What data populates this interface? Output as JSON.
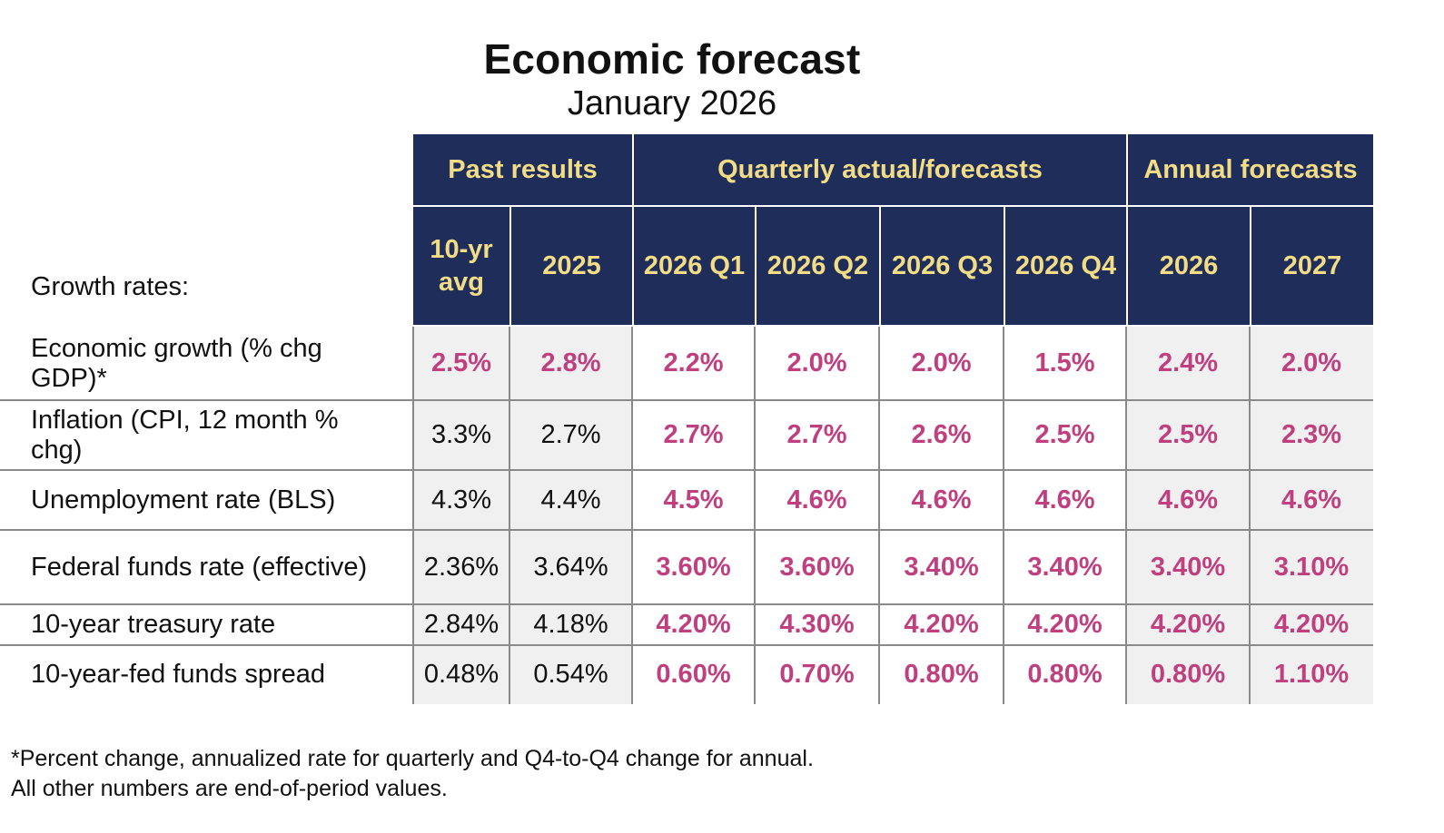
{
  "title": "Economic forecast",
  "subtitle": "January 2026",
  "header": {
    "groups": [
      "Past results",
      "Quarterly actual/forecasts",
      "Annual forecasts"
    ],
    "columns": [
      "10-yr avg",
      "2025",
      "2026 Q1",
      "2026 Q2",
      "2026 Q3",
      "2026 Q4",
      "2026",
      "2027"
    ]
  },
  "section_label": "Growth rates:",
  "rows": [
    {
      "label": "Economic growth (% chg GDP)*",
      "values": [
        "2.5%",
        "2.8%",
        "2.2%",
        "2.0%",
        "2.0%",
        "1.5%",
        "2.4%",
        "2.0%"
      ]
    },
    {
      "label": "Inflation (CPI, 12 month % chg)",
      "values": [
        "3.3%",
        "2.7%",
        "2.7%",
        "2.7%",
        "2.6%",
        "2.5%",
        "2.5%",
        "2.3%"
      ]
    },
    {
      "label": "Unemployment rate (BLS)",
      "values": [
        "4.3%",
        "4.4%",
        "4.5%",
        "4.6%",
        "4.6%",
        "4.6%",
        "4.6%",
        "4.6%"
      ]
    },
    {
      "label": "Federal funds rate (effective)",
      "values": [
        "2.36%",
        "3.64%",
        "3.60%",
        "3.60%",
        "3.40%",
        "3.40%",
        "3.40%",
        "3.10%"
      ]
    },
    {
      "label": "10-year treasury rate",
      "values": [
        "2.84%",
        "4.18%",
        "4.20%",
        "4.30%",
        "4.20%",
        "4.20%",
        "4.20%",
        "4.20%"
      ]
    },
    {
      "label": "10-year-fed funds spread",
      "values": [
        "0.48%",
        "0.54%",
        "0.60%",
        "0.70%",
        "0.80%",
        "0.80%",
        "0.80%",
        "1.10%"
      ]
    }
  ],
  "highlight_first_row_past": true,
  "colors": {
    "header_bg": "#1f2d5b",
    "header_text": "#f3dc86",
    "forecast_text": "#c0407f"
  },
  "footnotes": [
    "*Percent change, annualized rate for quarterly and Q4-to-Q4 change for annual.",
    "All other numbers are end-of-period values."
  ]
}
